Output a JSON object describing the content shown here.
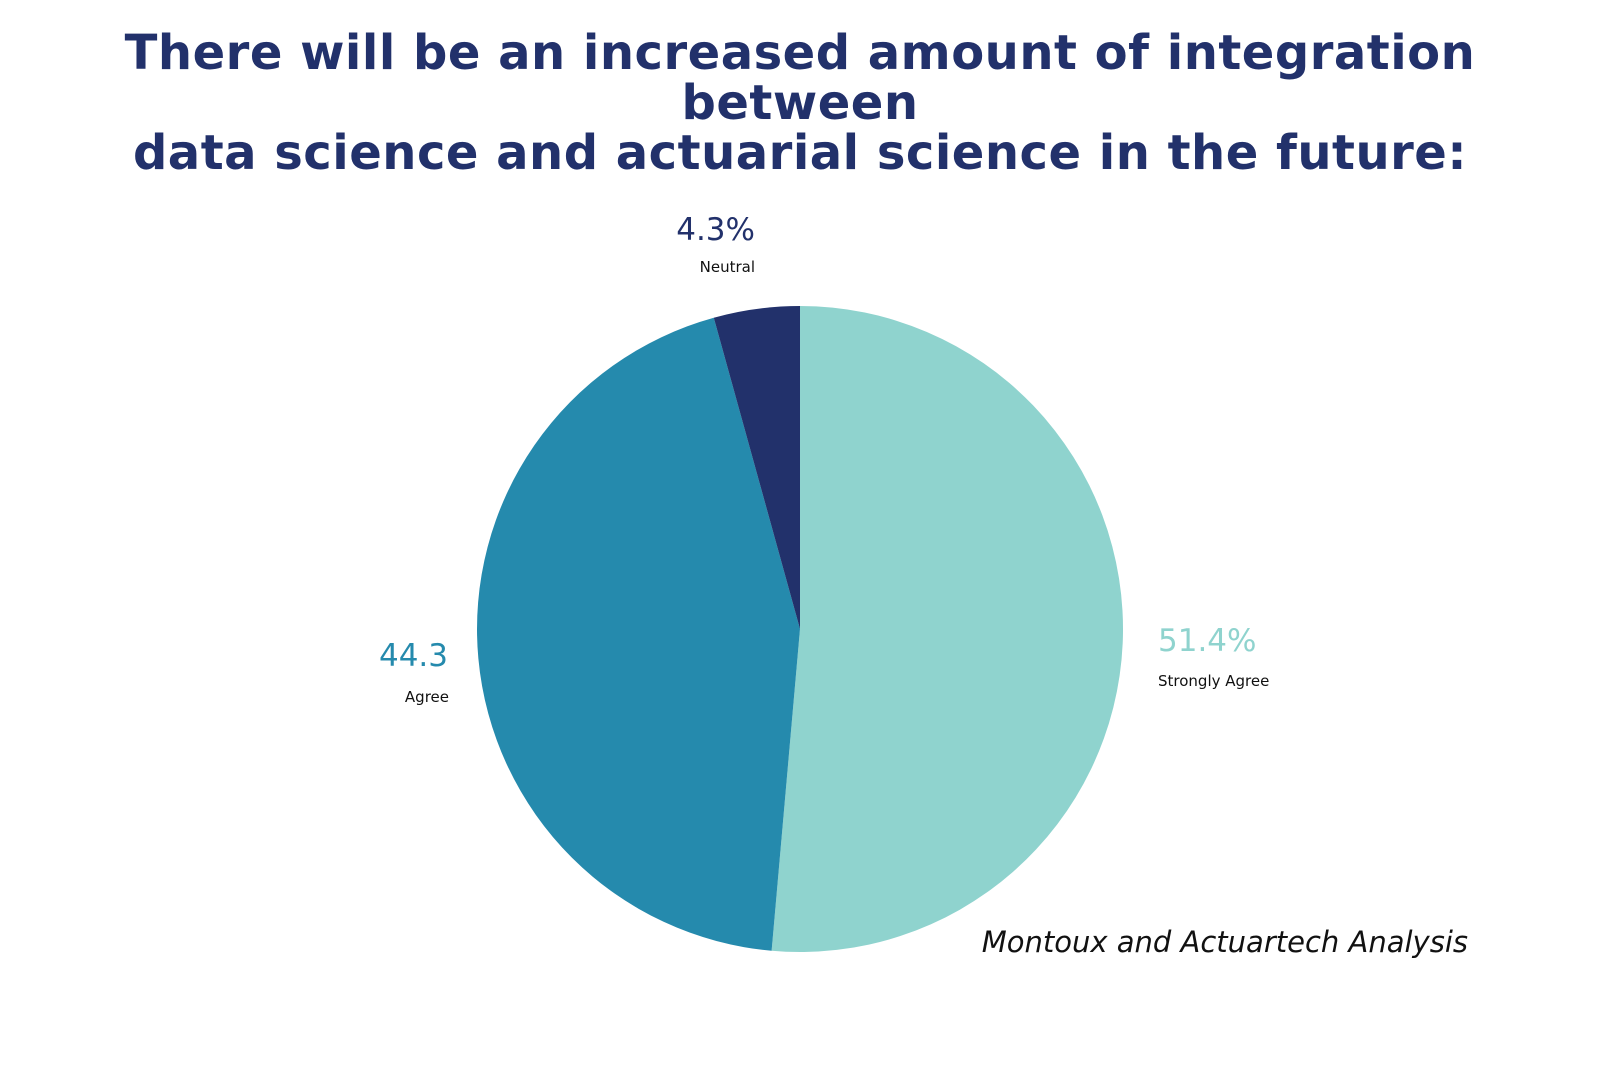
{
  "title": {
    "line1": "There will be an increased amount of integration between",
    "line2": "data science and actuarial science in the future:"
  },
  "source": "Montoux and Actuartech Analysis",
  "chart_data": {
    "type": "pie",
    "title": "There will be an increased amount of integration between data science and actuarial science in the future:",
    "slices": [
      {
        "label": "Strongly Agree",
        "value": 51.4,
        "display": "51.4%",
        "color": "#8fd3ce"
      },
      {
        "label": "Agree",
        "value": 44.3,
        "display": "44.3",
        "color": "#258aad"
      },
      {
        "label": "Neutral",
        "value": 4.3,
        "display": "4.3%",
        "color": "#22316b"
      }
    ],
    "start_angle_deg": 0,
    "direction": "clockwise",
    "legend": "none"
  }
}
